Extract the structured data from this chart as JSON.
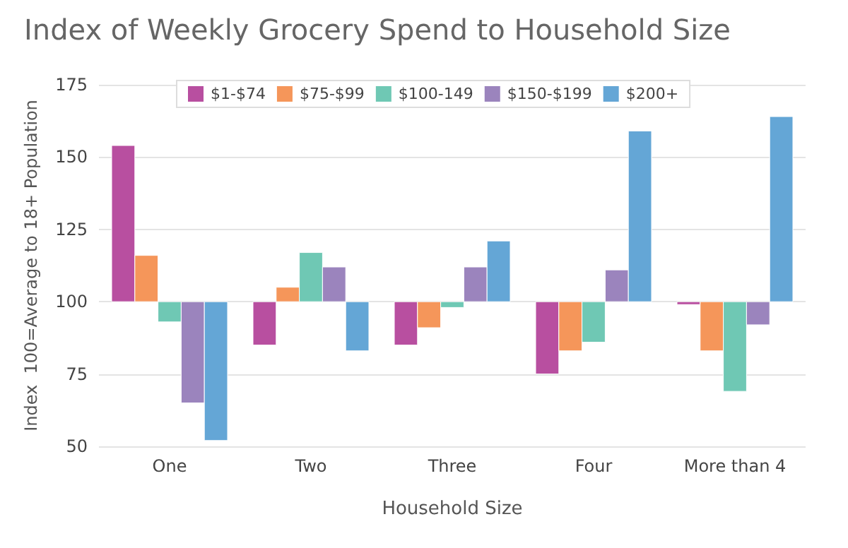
{
  "chart_data": {
    "type": "bar",
    "title": "Index of Weekly Grocery Spend to Household Size",
    "xlabel": "Household Size",
    "ylabel": "Index  100=Average to 18+ Population",
    "categories": [
      "One",
      "Two",
      "Three",
      "Four",
      "More than 4"
    ],
    "series": [
      {
        "name": "$1-$74",
        "color": "#b84fa0",
        "base": [
          100,
          100,
          100,
          100,
          100
        ],
        "values": [
          54,
          -15,
          -15,
          -25,
          -1
        ]
      },
      {
        "name": "$75-$99",
        "color": "#f5965a",
        "base": [
          100,
          100,
          100,
          100,
          100
        ],
        "values": [
          16,
          5,
          -9,
          -17,
          -17
        ]
      },
      {
        "name": "$100-149",
        "color": "#6fc8b4",
        "base": [
          100,
          100,
          100,
          100,
          100
        ],
        "values": [
          -7,
          17,
          -2,
          -14,
          -31
        ]
      },
      {
        "name": "$150-$199",
        "color": "#9b84bd",
        "base": [
          100,
          100,
          100,
          100,
          100
        ],
        "values": [
          -35,
          12,
          12,
          11,
          -8
        ]
      },
      {
        "name": "$200+",
        "color": "#64a6d6",
        "base": [
          100,
          100,
          100,
          100,
          100
        ],
        "values": [
          -48,
          -17,
          21,
          59,
          64
        ]
      }
    ],
    "ylim": [
      50,
      175
    ],
    "yticks": [
      50,
      75,
      100,
      125,
      150,
      175
    ],
    "grid": "y",
    "legend": "top"
  }
}
